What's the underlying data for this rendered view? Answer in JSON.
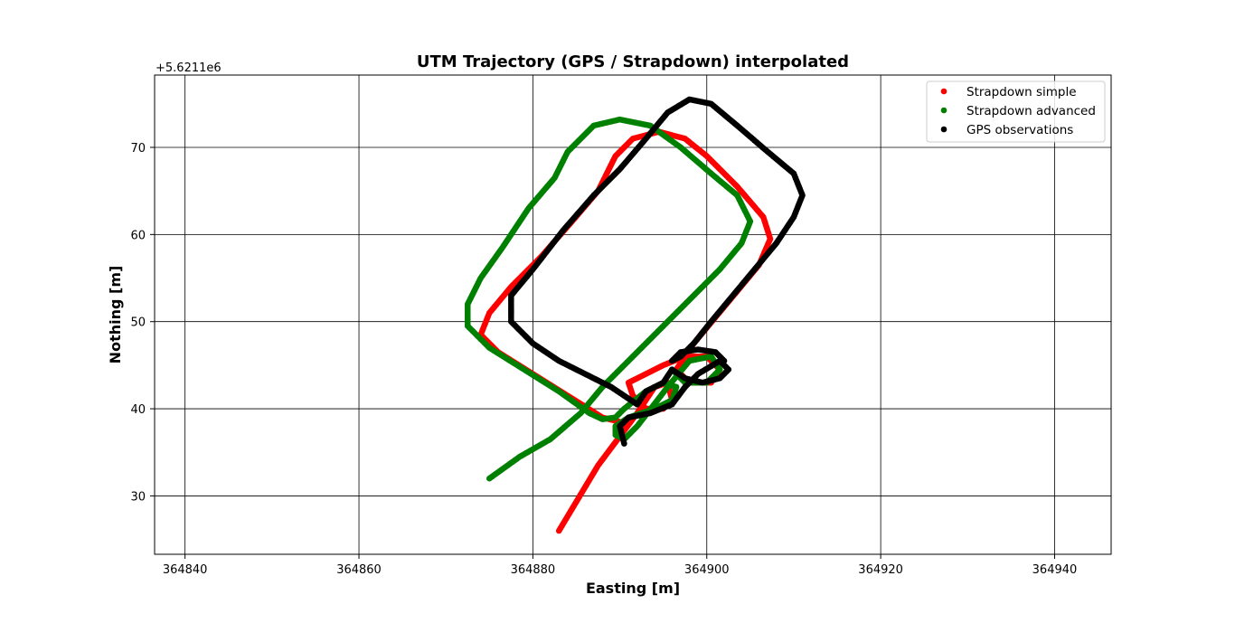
{
  "chart_data": {
    "type": "scatter",
    "title": "UTM Trajectory (GPS / Strapdown) interpolated",
    "xlabel": "Easting [m]",
    "ylabel": "Nothing [m]",
    "y_offset_label": "+5.6211e6",
    "xlim": [
      364836.5,
      364946.5
    ],
    "ylim": [
      23.3,
      78.3
    ],
    "xticks": [
      364840,
      364860,
      364880,
      364900,
      364920,
      364940
    ],
    "yticks": [
      30,
      40,
      50,
      60,
      70
    ],
    "grid": true,
    "legend_position": "upper right",
    "series": [
      {
        "name": "Strapdown simple",
        "color": "#ff0000",
        "points": [
          [
            364883.0,
            26.0
          ],
          [
            364887.5,
            33.5
          ],
          [
            364890.5,
            37.5
          ],
          [
            364892.0,
            39.5
          ],
          [
            364894.0,
            42.5
          ],
          [
            364895.5,
            43.0
          ],
          [
            364896.0,
            41.0
          ],
          [
            364895.0,
            40.0
          ],
          [
            364893.0,
            40.0
          ],
          [
            364891.5,
            41.5
          ],
          [
            364891.0,
            43.0
          ],
          [
            364893.0,
            44.0
          ],
          [
            364895.0,
            45.0
          ],
          [
            364897.5,
            46.0
          ],
          [
            364900.0,
            46.0
          ],
          [
            364901.5,
            44.5
          ],
          [
            364900.5,
            43.0
          ],
          [
            364898.0,
            43.0
          ],
          [
            364896.5,
            44.5
          ],
          [
            364898.5,
            47.5
          ],
          [
            364901.0,
            50.5
          ],
          [
            364903.5,
            53.5
          ],
          [
            364906.0,
            56.5
          ],
          [
            364907.3,
            59.5
          ],
          [
            364906.5,
            62.0
          ],
          [
            364903.5,
            65.5
          ],
          [
            364900.0,
            69.0
          ],
          [
            364897.5,
            71.0
          ],
          [
            364894.5,
            71.8
          ],
          [
            364891.5,
            71.0
          ],
          [
            364889.5,
            69.0
          ],
          [
            364887.5,
            65.0
          ],
          [
            364884.5,
            61.5
          ],
          [
            364881.0,
            57.5
          ],
          [
            364877.5,
            54.0
          ],
          [
            364875.0,
            51.0
          ],
          [
            364874.0,
            48.5
          ],
          [
            364876.0,
            46.5
          ],
          [
            364880.0,
            44.0
          ],
          [
            364884.0,
            41.5
          ],
          [
            364888.0,
            39.0
          ],
          [
            364890.0,
            38.5
          ]
        ]
      },
      {
        "name": "Strapdown advanced",
        "color": "#008000",
        "points": [
          [
            364875.0,
            32.0
          ],
          [
            364878.5,
            34.5
          ],
          [
            364882.0,
            36.5
          ],
          [
            364885.5,
            39.5
          ],
          [
            364888.0,
            42.5
          ],
          [
            364891.0,
            45.5
          ],
          [
            364894.5,
            49.0
          ],
          [
            364898.0,
            52.5
          ],
          [
            364901.5,
            56.0
          ],
          [
            364904.0,
            59.0
          ],
          [
            364905.0,
            61.5
          ],
          [
            364903.5,
            64.5
          ],
          [
            364900.5,
            67.0
          ],
          [
            364897.0,
            70.0
          ],
          [
            364893.5,
            72.5
          ],
          [
            364890.0,
            73.2
          ],
          [
            364887.0,
            72.5
          ],
          [
            364885.5,
            71.0
          ],
          [
            364884.0,
            69.5
          ],
          [
            364882.5,
            66.5
          ],
          [
            364879.5,
            63.0
          ],
          [
            364876.5,
            58.5
          ],
          [
            364874.0,
            55.0
          ],
          [
            364872.5,
            52.0
          ],
          [
            364872.5,
            49.5
          ],
          [
            364875.0,
            47.0
          ],
          [
            364879.0,
            44.5
          ],
          [
            364883.0,
            42.0
          ],
          [
            364886.5,
            39.5
          ],
          [
            364888.0,
            38.8
          ],
          [
            364889.5,
            39.0
          ],
          [
            364890.5,
            40.0
          ],
          [
            364893.0,
            42.0
          ],
          [
            364895.0,
            43.0
          ],
          [
            364896.5,
            42.5
          ],
          [
            364896.0,
            41.0
          ],
          [
            364894.0,
            40.0
          ],
          [
            364891.0,
            39.0
          ],
          [
            364889.5,
            38.0
          ],
          [
            364889.5,
            37.0
          ],
          [
            364890.5,
            36.5
          ],
          [
            364892.0,
            38.0
          ],
          [
            364895.5,
            42.5
          ],
          [
            364898.0,
            45.5
          ],
          [
            364900.5,
            46.0
          ],
          [
            364901.5,
            44.5
          ],
          [
            364900.0,
            43.0
          ],
          [
            364897.5,
            43.0
          ],
          [
            364896.0,
            44.5
          ]
        ]
      },
      {
        "name": "GPS observations",
        "color": "#000000",
        "points": [
          [
            364890.5,
            36.0
          ],
          [
            364890.0,
            38.0
          ],
          [
            364891.0,
            39.0
          ],
          [
            364893.5,
            39.5
          ],
          [
            364896.0,
            40.5
          ],
          [
            364897.5,
            42.5
          ],
          [
            364899.0,
            44.0
          ],
          [
            364901.5,
            45.5
          ],
          [
            364902.5,
            44.5
          ],
          [
            364901.5,
            43.5
          ],
          [
            364899.5,
            43.0
          ],
          [
            364897.5,
            43.5
          ],
          [
            364896.0,
            44.5
          ],
          [
            364895.0,
            43.0
          ],
          [
            364893.0,
            42.0
          ],
          [
            364892.0,
            40.5
          ],
          [
            364890.5,
            41.5
          ],
          [
            364889.0,
            42.5
          ],
          [
            364886.0,
            44.0
          ],
          [
            364883.0,
            45.5
          ],
          [
            364880.0,
            47.5
          ],
          [
            364877.5,
            50.0
          ],
          [
            364877.5,
            53.0
          ],
          [
            364880.0,
            56.0
          ],
          [
            364883.5,
            60.5
          ],
          [
            364887.0,
            64.5
          ],
          [
            364890.0,
            67.5
          ],
          [
            364893.0,
            71.0
          ],
          [
            364895.5,
            74.0
          ],
          [
            364898.0,
            75.5
          ],
          [
            364900.5,
            75.0
          ],
          [
            364903.5,
            72.5
          ],
          [
            364907.0,
            69.5
          ],
          [
            364910.0,
            67.0
          ],
          [
            364911.0,
            64.5
          ],
          [
            364910.0,
            62.0
          ],
          [
            364908.0,
            59.0
          ],
          [
            364905.5,
            56.0
          ],
          [
            364903.0,
            53.0
          ],
          [
            364900.5,
            50.0
          ],
          [
            364898.5,
            47.5
          ],
          [
            364897.0,
            46.0
          ],
          [
            364896.0,
            45.5
          ],
          [
            364897.0,
            46.5
          ],
          [
            364899.0,
            46.8
          ],
          [
            364901.0,
            46.5
          ],
          [
            364902.0,
            45.5
          ]
        ]
      }
    ]
  }
}
